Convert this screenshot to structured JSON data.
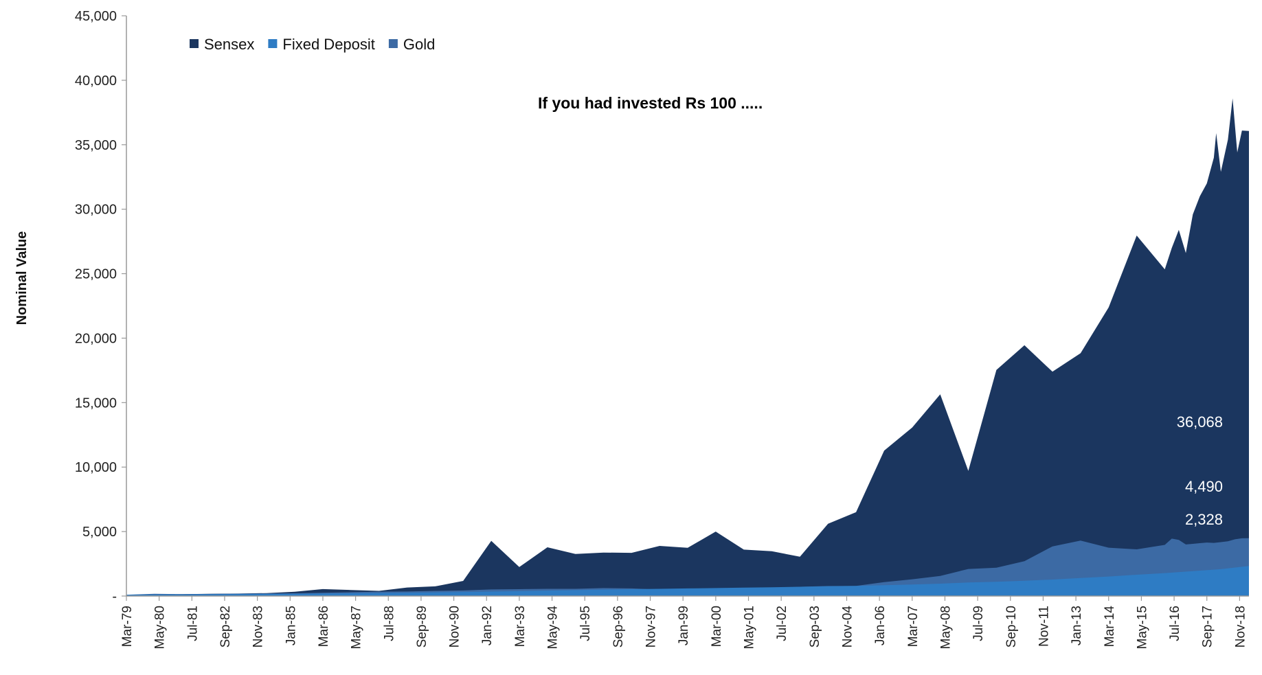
{
  "chart_data": {
    "type": "area",
    "title": "If you had invested Rs 100 .....",
    "xlabel": "",
    "ylabel": "Nominal Value",
    "ylim": [
      0,
      45000
    ],
    "yticks": [
      0,
      5000,
      10000,
      15000,
      20000,
      25000,
      30000,
      35000,
      40000,
      45000
    ],
    "ytick_labels": [
      "-",
      "5,000",
      "10,000",
      "15,000",
      "20,000",
      "25,000",
      "30,000",
      "35,000",
      "40,000",
      "45,000"
    ],
    "x_range": [
      "Mar-79",
      "Mar-19"
    ],
    "xtick_labels": [
      "Mar-79",
      "May-80",
      "Jul-81",
      "Sep-82",
      "Nov-83",
      "Jan-85",
      "Mar-86",
      "May-87",
      "Jul-88",
      "Sep-89",
      "Nov-90",
      "Jan-92",
      "Mar-93",
      "May-94",
      "Jul-95",
      "Sep-96",
      "Nov-97",
      "Jan-99",
      "Mar-00",
      "May-01",
      "Jul-02",
      "Sep-03",
      "Nov-04",
      "Jan-06",
      "Mar-07",
      "May-08",
      "Jul-09",
      "Sep-10",
      "Nov-11",
      "Jan-13",
      "Mar-14",
      "May-15",
      "Jul-16",
      "Sep-17",
      "Nov-18"
    ],
    "grid": false,
    "legend_position": "top-left",
    "stacked": false,
    "colors": {
      "Sensex": "#1b365f",
      "Fixed Deposit": "#2e7cc4",
      "Gold": "#3c6aa4"
    },
    "series": [
      {
        "name": "Sensex",
        "points": [
          [
            "Mar-79",
            100
          ],
          [
            "Mar-80",
            130
          ],
          [
            "Mar-81",
            150
          ],
          [
            "Mar-82",
            170
          ],
          [
            "Mar-83",
            190
          ],
          [
            "Mar-84",
            230
          ],
          [
            "Mar-85",
            330
          ],
          [
            "Mar-86",
            540
          ],
          [
            "Mar-87",
            470
          ],
          [
            "Mar-88",
            400
          ],
          [
            "Mar-89",
            660
          ],
          [
            "Mar-90",
            750
          ],
          [
            "Mar-91",
            1170
          ],
          [
            "Mar-92",
            4280
          ],
          [
            "Mar-93",
            2250
          ],
          [
            "Mar-94",
            3780
          ],
          [
            "Mar-95",
            3260
          ],
          [
            "Mar-96",
            3370
          ],
          [
            "Mar-97",
            3350
          ],
          [
            "Mar-98",
            3890
          ],
          [
            "Mar-99",
            3740
          ],
          [
            "Mar-00",
            5000
          ],
          [
            "Mar-01",
            3600
          ],
          [
            "Mar-02",
            3470
          ],
          [
            "Mar-03",
            3050
          ],
          [
            "Mar-04",
            5600
          ],
          [
            "Mar-05",
            6500
          ],
          [
            "Mar-06",
            11280
          ],
          [
            "Mar-07",
            13070
          ],
          [
            "Mar-08",
            15640
          ],
          [
            "Mar-09",
            9710
          ],
          [
            "Mar-10",
            17530
          ],
          [
            "Mar-11",
            19450
          ],
          [
            "Mar-12",
            17400
          ],
          [
            "Mar-13",
            18830
          ],
          [
            "Mar-14",
            22390
          ],
          [
            "Mar-15",
            27960
          ],
          [
            "Mar-16",
            25340
          ],
          [
            "Jun-16",
            27000
          ],
          [
            "Sep-16",
            28400
          ],
          [
            "Dec-16",
            26600
          ],
          [
            "Mar-17",
            29600
          ],
          [
            "Jun-17",
            31000
          ],
          [
            "Sep-17",
            32000
          ],
          [
            "Dec-17",
            34000
          ],
          [
            "Jan-18",
            35900
          ],
          [
            "Mar-18",
            32900
          ],
          [
            "Jun-18",
            35400
          ],
          [
            "Aug-18",
            38600
          ],
          [
            "Oct-18",
            34400
          ],
          [
            "Dec-18",
            36100
          ],
          [
            "Mar-19",
            36068
          ]
        ]
      },
      {
        "name": "Gold",
        "points": [
          [
            "Mar-79",
            100
          ],
          [
            "Mar-80",
            170
          ],
          [
            "Mar-81",
            150
          ],
          [
            "Mar-82",
            165
          ],
          [
            "Mar-83",
            185
          ],
          [
            "Mar-84",
            200
          ],
          [
            "Mar-85",
            215
          ],
          [
            "Mar-86",
            250
          ],
          [
            "Mar-87",
            300
          ],
          [
            "Mar-88",
            340
          ],
          [
            "Mar-89",
            350
          ],
          [
            "Mar-90",
            400
          ],
          [
            "Mar-91",
            430
          ],
          [
            "Mar-92",
            510
          ],
          [
            "Mar-93",
            530
          ],
          [
            "Mar-94",
            560
          ],
          [
            "Mar-95",
            560
          ],
          [
            "Mar-96",
            620
          ],
          [
            "Mar-97",
            590
          ],
          [
            "Mar-98",
            500
          ],
          [
            "Mar-99",
            510
          ],
          [
            "Mar-00",
            520
          ],
          [
            "Mar-01",
            540
          ],
          [
            "Mar-02",
            620
          ],
          [
            "Mar-03",
            720
          ],
          [
            "Mar-04",
            780
          ],
          [
            "Mar-05",
            790
          ],
          [
            "Mar-06",
            1080
          ],
          [
            "Mar-07",
            1300
          ],
          [
            "Mar-08",
            1560
          ],
          [
            "Mar-09",
            2100
          ],
          [
            "Mar-10",
            2200
          ],
          [
            "Mar-11",
            2700
          ],
          [
            "Mar-12",
            3850
          ],
          [
            "Mar-13",
            4300
          ],
          [
            "Mar-14",
            3750
          ],
          [
            "Mar-15",
            3620
          ],
          [
            "Mar-16",
            3970
          ],
          [
            "Jun-16",
            4450
          ],
          [
            "Sep-16",
            4350
          ],
          [
            "Dec-16",
            4000
          ],
          [
            "Mar-17",
            4050
          ],
          [
            "Jun-17",
            4100
          ],
          [
            "Sep-17",
            4150
          ],
          [
            "Dec-17",
            4120
          ],
          [
            "Mar-18",
            4180
          ],
          [
            "Jun-18",
            4250
          ],
          [
            "Sep-18",
            4400
          ],
          [
            "Dec-18",
            4480
          ],
          [
            "Mar-19",
            4490
          ]
        ]
      },
      {
        "name": "Fixed Deposit",
        "points": [
          [
            "Mar-79",
            100
          ],
          [
            "Mar-80",
            110
          ],
          [
            "Mar-81",
            120
          ],
          [
            "Mar-82",
            132
          ],
          [
            "Mar-83",
            145
          ],
          [
            "Mar-84",
            160
          ],
          [
            "Mar-85",
            176
          ],
          [
            "Mar-86",
            194
          ],
          [
            "Mar-87",
            213
          ],
          [
            "Mar-88",
            234
          ],
          [
            "Mar-89",
            258
          ],
          [
            "Mar-90",
            283
          ],
          [
            "Mar-91",
            312
          ],
          [
            "Mar-92",
            345
          ],
          [
            "Mar-93",
            380
          ],
          [
            "Mar-94",
            420
          ],
          [
            "Mar-95",
            460
          ],
          [
            "Mar-96",
            500
          ],
          [
            "Mar-97",
            530
          ],
          [
            "Mar-98",
            560
          ],
          [
            "Mar-99",
            590
          ],
          [
            "Mar-00",
            620
          ],
          [
            "Mar-01",
            650
          ],
          [
            "Mar-02",
            680
          ],
          [
            "Mar-03",
            720
          ],
          [
            "Mar-04",
            760
          ],
          [
            "Mar-05",
            790
          ],
          [
            "Mar-06",
            840
          ],
          [
            "Mar-07",
            890
          ],
          [
            "Mar-08",
            960
          ],
          [
            "Mar-09",
            1050
          ],
          [
            "Mar-10",
            1110
          ],
          [
            "Mar-11",
            1180
          ],
          [
            "Mar-12",
            1280
          ],
          [
            "Mar-13",
            1400
          ],
          [
            "Mar-14",
            1510
          ],
          [
            "Mar-15",
            1650
          ],
          [
            "Mar-16",
            1780
          ],
          [
            "Mar-17",
            1930
          ],
          [
            "Mar-18",
            2080
          ],
          [
            "Mar-19",
            2328
          ]
        ]
      }
    ],
    "end_labels": [
      {
        "series": "Sensex",
        "text": "36,068"
      },
      {
        "series": "Gold",
        "text": "4,490"
      },
      {
        "series": "Fixed Deposit",
        "text": "2,328"
      }
    ]
  }
}
